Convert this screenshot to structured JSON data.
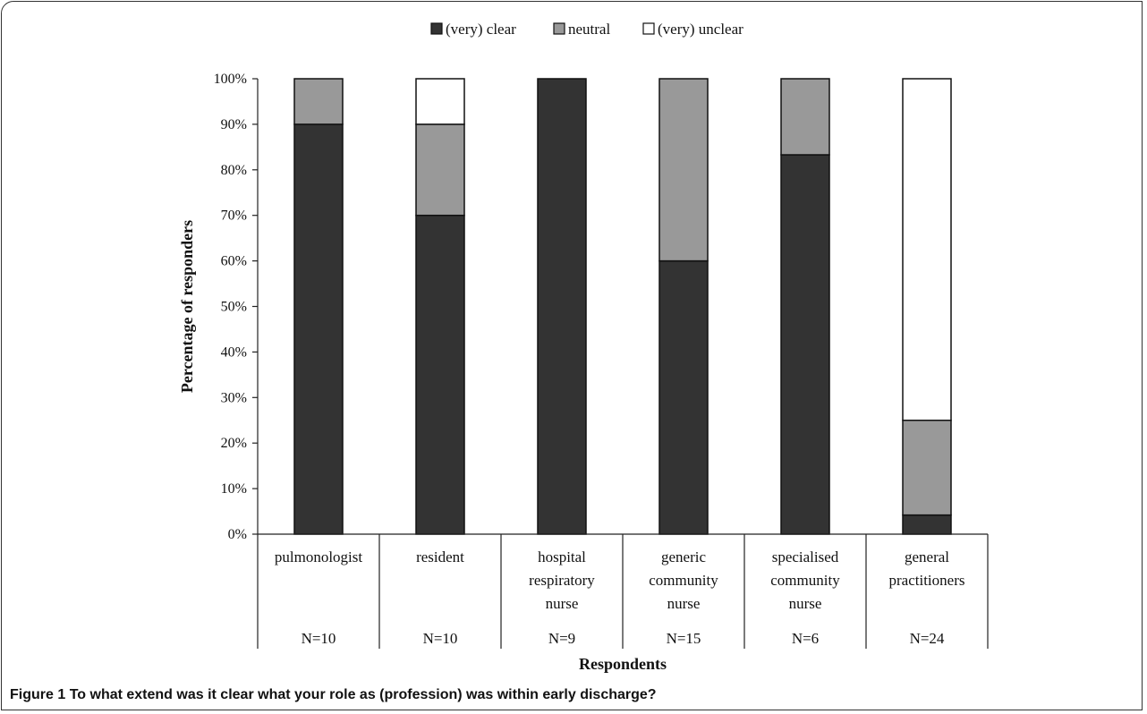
{
  "chart_data": {
    "type": "bar",
    "stacked": true,
    "percent": true,
    "categories": [
      [
        "pulmonologist"
      ],
      [
        "resident"
      ],
      [
        "hospital",
        "respiratory",
        "nurse"
      ],
      [
        "generic",
        "community",
        "nurse"
      ],
      [
        "specialised",
        "community",
        "nurse"
      ],
      [
        "general",
        "practitioners"
      ]
    ],
    "counts": [
      "N=10",
      "N=10",
      "N=9",
      "N=15",
      "N=6",
      "N=24"
    ],
    "series": [
      {
        "name": "(very) clear",
        "color": "#333333",
        "values": [
          90,
          70,
          100,
          60,
          83.3,
          4.2
        ]
      },
      {
        "name": "neutral",
        "color": "#999999",
        "values": [
          10,
          20,
          0,
          40,
          16.7,
          20.8
        ]
      },
      {
        "name": "(very) unclear",
        "color": "#ffffff",
        "values": [
          0,
          10,
          0,
          0,
          0,
          75
        ]
      }
    ],
    "ylim": [
      0,
      100
    ],
    "yticks": [
      "0%",
      "10%",
      "20%",
      "30%",
      "40%",
      "50%",
      "60%",
      "70%",
      "80%",
      "90%",
      "100%"
    ],
    "xlabel": "Respondents",
    "ylabel": "Percentage of responders",
    "legend_position": "top"
  },
  "caption": {
    "label": "Figure 1",
    "text": "To what extend was it clear what your role as (profession) was within early discharge?"
  }
}
